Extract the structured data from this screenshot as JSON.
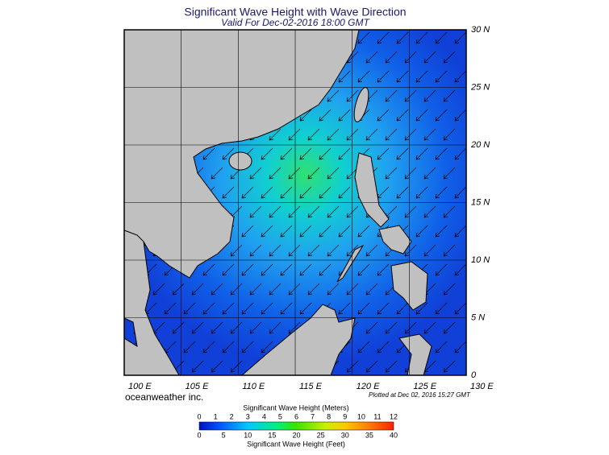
{
  "header": {
    "title": "Significant Wave Height with Wave Direction",
    "subtitle": "Valid For Dec-02-2016 18:00 GMT"
  },
  "map": {
    "lon_labels": [
      "100 E",
      "105 E",
      "110 E",
      "115 E",
      "120 E",
      "125 E",
      "130 E"
    ],
    "lat_labels": [
      "30 N",
      "25 N",
      "20 N",
      "15 N",
      "10 N",
      "5 N",
      "0"
    ]
  },
  "footer": {
    "credit": "oceanweather inc.",
    "plotted": "Plotted at Dec 02, 2016 15:27 GMT"
  },
  "legend": {
    "meters_title": "Significant Wave Height (Meters)",
    "meters_ticks": [
      "0",
      "1",
      "2",
      "3",
      "4",
      "5",
      "6",
      "7",
      "8",
      "9",
      "10",
      "11",
      "12"
    ],
    "feet_ticks": [
      "0",
      "5",
      "10",
      "15",
      "20",
      "25",
      "30",
      "35",
      "40"
    ],
    "feet_title": "Significant Wave Height (Feet)"
  }
}
